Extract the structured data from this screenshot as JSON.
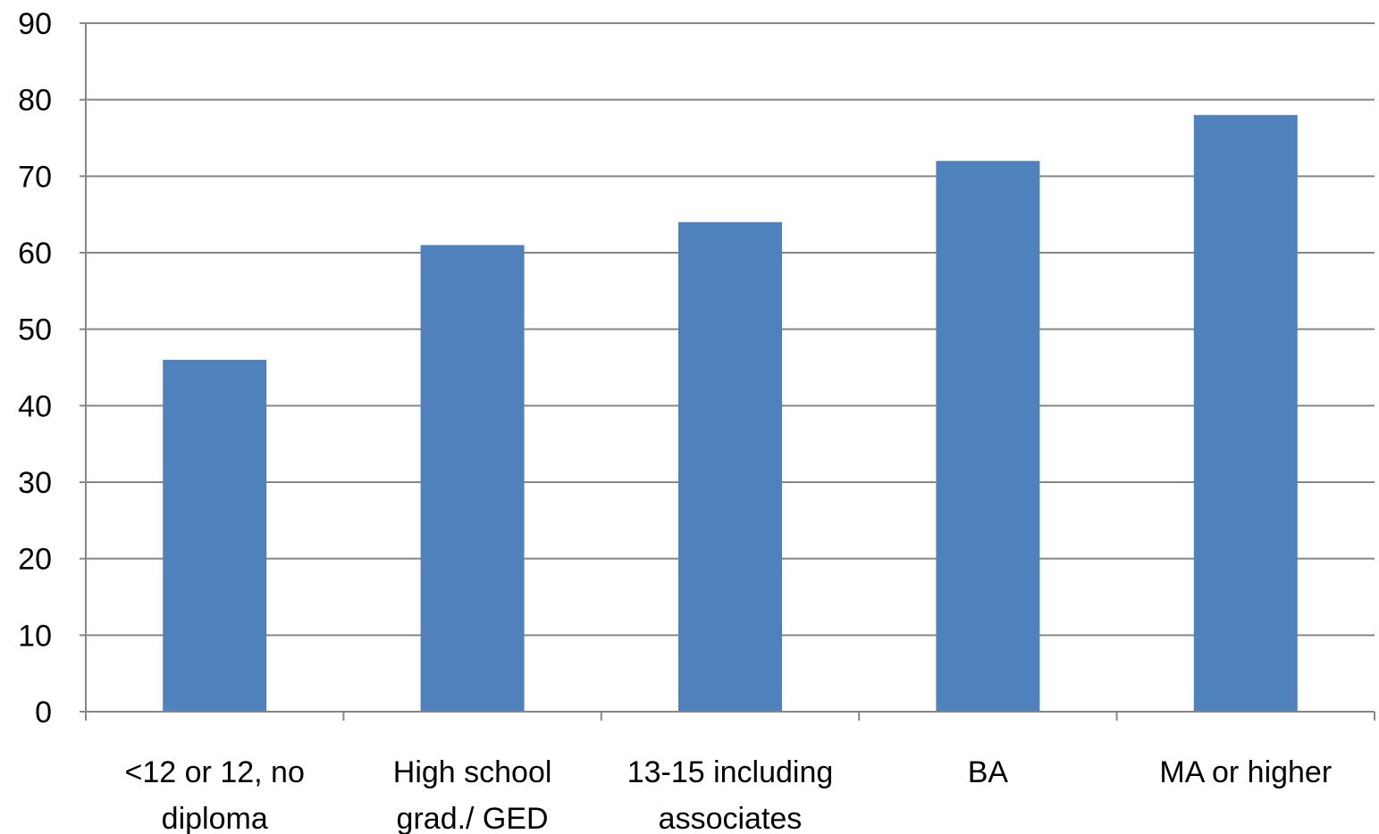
{
  "chart_data": {
    "type": "bar",
    "title": "",
    "xlabel": "",
    "ylabel": "",
    "categories": [
      [
        "<12 or 12, no",
        "diploma"
      ],
      [
        "High school",
        "grad./ GED"
      ],
      [
        "13-15 including",
        "associates"
      ],
      [
        "BA"
      ],
      [
        "MA or higher"
      ]
    ],
    "values": [
      46,
      61,
      64,
      72,
      78
    ],
    "ylim": [
      0,
      90
    ],
    "yticks": [
      "0",
      "10",
      "20",
      "30",
      "40",
      "50",
      "60",
      "70",
      "80",
      "90"
    ],
    "grid": true,
    "legend": "none",
    "colors": {
      "bar": "#4F81BD",
      "grid": "#868686",
      "axis": "#868686"
    }
  }
}
